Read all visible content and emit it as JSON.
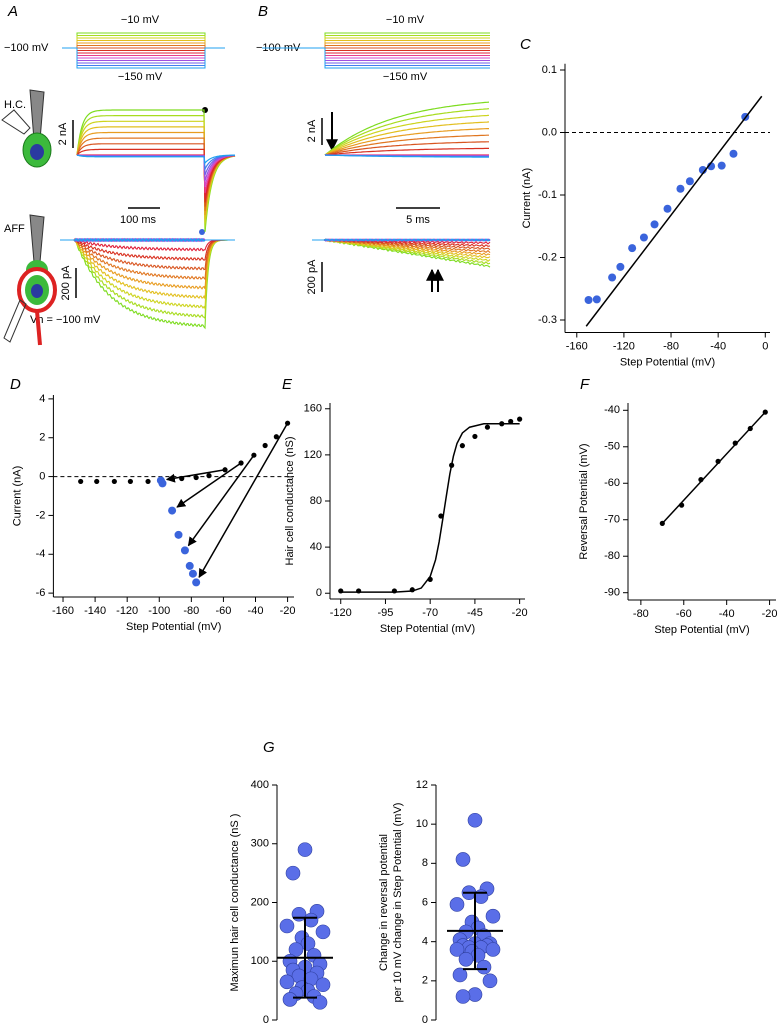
{
  "panels_ab": {
    "A": {
      "panel": "A",
      "step_top": "−10 mV",
      "step_hold": "−100 mV",
      "step_bottom": "−150 mV",
      "cell_hc": "H.C.",
      "hc_scale": "2 nA",
      "time_scale": "100 ms",
      "cell_aff": "AFF",
      "aff_scale": "200 pA",
      "holding": "Vh = −100 mV"
    },
    "B": {
      "panel": "B",
      "step_top": "−10 mV",
      "step_hold": "−100 mV",
      "step_bottom": "−150 mV",
      "hc_scale": "2 nA",
      "time_scale": "5 ms",
      "aff_scale": "200 pA"
    },
    "trace_colors": [
      "#7ddc1f",
      "#a8dc1f",
      "#cdd41e",
      "#e2bf1e",
      "#e89c20",
      "#e07620",
      "#d85520",
      "#d83020",
      "#e0203a",
      "#e83c8c",
      "#d04ccc",
      "#a050e0",
      "#7060e8",
      "#4080f0",
      "#20a0f0"
    ]
  },
  "chart_data": [
    {
      "type": "scatter",
      "panel": "C",
      "xlabel": "Step Potential (mV)",
      "ylabel": "Current (nA)",
      "xlim": [
        -170,
        4
      ],
      "ylim": [
        -0.32,
        0.11
      ],
      "xticks": [
        -160,
        -120,
        -80,
        -40,
        0
      ],
      "yticks": [
        0.1,
        {
          "value": 0,
          "label": "0.0"
        },
        -0.1,
        -0.2,
        -0.3
      ],
      "reference_line": {
        "value": 0,
        "style": "dashed"
      },
      "series": [
        {
          "style": "points",
          "color": "#3a64dc",
          "x": [
            -150,
            -143,
            -130,
            -123,
            -113,
            -103,
            -94,
            -83,
            -72,
            -64,
            -53,
            -46,
            -37,
            -27,
            -17
          ],
          "values": [
            -0.268,
            -0.267,
            -0.232,
            -0.215,
            -0.185,
            -0.168,
            -0.147,
            -0.122,
            -0.09,
            -0.078,
            -0.06,
            -0.054,
            -0.053,
            -0.034,
            0.025
          ]
        },
        {
          "style": "line",
          "color": "#000000",
          "x": [
            -152,
            -3
          ],
          "values": [
            -0.31,
            0.058
          ]
        }
      ]
    },
    {
      "type": "scatter",
      "panel": "D",
      "xlabel": "Step Potential (mV)",
      "ylabel": "Current (nA)",
      "xlim": [
        -166,
        -16
      ],
      "ylim": [
        -6.2,
        4.2
      ],
      "xticks": [
        -160,
        -140,
        -120,
        -100,
        -80,
        -60,
        -40,
        -20
      ],
      "yticks": [
        4,
        2,
        0,
        -2,
        -4,
        -6
      ],
      "reference_line": {
        "value": 0,
        "style": "dashed"
      },
      "series": [
        {
          "style": "points",
          "color": "#000000",
          "x": [
            -149,
            -139,
            -128,
            -118,
            -107,
            -86,
            -77,
            -69,
            -59,
            -49,
            -41,
            -34,
            -27,
            -20
          ],
          "values": [
            -0.25,
            -0.25,
            -0.25,
            -0.25,
            -0.25,
            -0.1,
            -0.05,
            0.05,
            0.35,
            0.7,
            1.1,
            1.6,
            2.05,
            2.75
          ]
        },
        {
          "style": "points",
          "color": "#3a64dc",
          "x": [
            -99,
            -98,
            -92,
            -88,
            -84,
            -81,
            -79,
            -77
          ],
          "values": [
            -0.2,
            -0.35,
            -1.75,
            -3.0,
            -3.8,
            -4.6,
            -5.0,
            -5.45
          ]
        }
      ]
    },
    {
      "type": "scatter",
      "panel": "E",
      "xlabel": "Step Potential (mV)",
      "ylabel": "Hair cell conductance (nS)",
      "xlim": [
        -126,
        -17
      ],
      "ylim": [
        -5,
        165
      ],
      "xticks": [
        -120,
        -95,
        -70,
        -45,
        -20
      ],
      "yticks": [
        0,
        40,
        80,
        120,
        160
      ],
      "series": [
        {
          "style": "points",
          "color": "#000000",
          "x": [
            -120,
            -110,
            -90,
            -80,
            -70,
            -64,
            -58,
            -52,
            -45,
            -38,
            -30,
            -25,
            -20
          ],
          "values": [
            2,
            2,
            2,
            3,
            12,
            67,
            111,
            128,
            136,
            144,
            147,
            149,
            151
          ]
        },
        {
          "style": "line",
          "color": "#000000",
          "x": [
            -120,
            -90,
            -80,
            -75,
            -70,
            -67,
            -65,
            -63,
            -61,
            -59,
            -57,
            -55,
            -52,
            -48,
            -40,
            -30,
            -20
          ],
          "values": [
            1,
            1,
            1.9,
            4.5,
            14.5,
            29,
            44.5,
            64,
            84,
            103.5,
            119,
            130,
            139,
            144,
            147,
            147,
            147
          ]
        }
      ]
    },
    {
      "type": "scatter",
      "panel": "F",
      "xlabel": "Step Potential (mV)",
      "ylabel": "Reversal Potential (mV)",
      "xlim": [
        -86,
        -17
      ],
      "ylim": [
        -92,
        -38
      ],
      "xticks": [
        -80,
        -60,
        -40,
        -20
      ],
      "yticks": [
        -40,
        -50,
        -60,
        -70,
        -80,
        -90
      ],
      "series": [
        {
          "style": "points",
          "color": "#000000",
          "x": [
            -70,
            -61,
            -52,
            -44,
            -36,
            -29,
            -22
          ],
          "values": [
            -71,
            -66,
            -59,
            -54,
            -49,
            -45,
            -40.5
          ]
        },
        {
          "style": "line",
          "color": "#000000",
          "x": [
            -70,
            -22
          ],
          "values": [
            -71,
            -40.5
          ]
        }
      ]
    },
    {
      "type": "strip",
      "panel": "G",
      "ylabel": "Maximun hair cell conductance (nS )",
      "ylim": [
        0,
        400
      ],
      "yticks": [
        0,
        100,
        200,
        300,
        400
      ],
      "color": "#5a6ee8",
      "values": [
        290,
        250,
        185,
        180,
        170,
        160,
        150,
        140,
        130,
        120,
        110,
        100,
        95,
        90,
        85,
        80,
        75,
        70,
        65,
        60,
        55,
        50,
        45,
        40,
        35,
        30
      ],
      "mean": 106,
      "sd": 68
    },
    {
      "type": "strip",
      "ylabel": [
        "Change in reversal potential",
        "per 10 mV change in Step Potential (mV)"
      ],
      "ylim": [
        0,
        12
      ],
      "yticks": [
        0,
        2,
        4,
        6,
        8,
        10,
        12
      ],
      "color": "#5a6ee8",
      "values": [
        10.2,
        8.2,
        6.7,
        6.5,
        6.3,
        5.9,
        5.3,
        5.0,
        4.7,
        4.5,
        4.3,
        4.1,
        3.9,
        3.9,
        3.8,
        3.8,
        3.7,
        3.7,
        3.6,
        3.6,
        3.5,
        3.3,
        3.1,
        2.7,
        2.3,
        2.0,
        1.3,
        1.2
      ],
      "mean": 4.55,
      "sd": 1.95
    }
  ]
}
